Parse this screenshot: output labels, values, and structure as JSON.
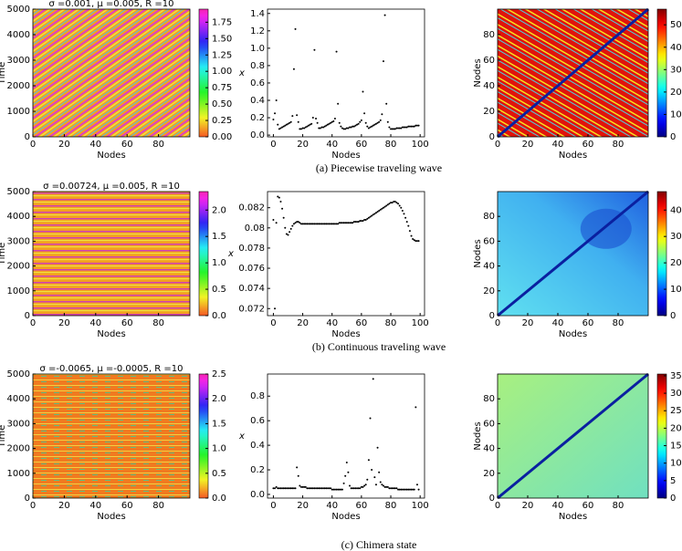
{
  "chart_data": [
    {
      "type": "heatmap",
      "title": "σ =0.001, μ =0.005, R =10",
      "xlabel": "Nodes",
      "ylabel": "Time",
      "xlim": [
        0,
        100
      ],
      "xticks": [
        0,
        20,
        40,
        60,
        80
      ],
      "ylim": [
        0,
        5000
      ],
      "yticks": [
        0,
        1000,
        2000,
        3000,
        4000,
        5000
      ],
      "colormap": "hsv",
      "clim": [
        0,
        1.95
      ],
      "cticks": [
        {
          "value": 0,
          "label": "0.00"
        },
        0.25,
        {
          "value": 0.5,
          "label": "0.50"
        },
        0.75,
        {
          "value": 1,
          "label": "1.00"
        },
        1.25,
        {
          "value": 1.5,
          "label": "1.50"
        },
        1.75
      ]
    },
    {
      "type": "scatter",
      "xlabel": "Nodes",
      "ylabel": "x",
      "color": "#000000",
      "xlim": [
        -4,
        103
      ],
      "xticks": [
        0,
        20,
        40,
        60,
        80,
        100
      ],
      "ylim": [
        -0.02,
        1.45
      ],
      "yticks": [
        {
          "value": 0,
          "label": "0.0"
        },
        0.2,
        0.4,
        0.6,
        0.8,
        {
          "value": 1,
          "label": "1.0"
        },
        1.2,
        1.4
      ],
      "x": [
        0,
        1,
        2,
        3,
        4,
        5,
        6,
        7,
        8,
        9,
        10,
        11,
        12,
        13,
        14,
        15,
        16,
        17,
        18,
        19,
        20,
        21,
        22,
        23,
        24,
        25,
        26,
        27,
        28,
        29,
        30,
        31,
        32,
        33,
        34,
        35,
        36,
        37,
        38,
        39,
        40,
        41,
        42,
        43,
        44,
        45,
        46,
        47,
        48,
        49,
        50,
        51,
        52,
        53,
        54,
        55,
        56,
        57,
        58,
        59,
        60,
        61,
        62,
        63,
        64,
        65,
        66,
        67,
        68,
        69,
        70,
        71,
        72,
        73,
        74,
        75,
        76,
        77,
        78,
        79,
        80,
        81,
        82,
        83,
        84,
        85,
        86,
        87,
        88,
        89,
        90,
        91,
        92,
        93,
        94,
        95,
        96,
        97,
        98,
        99
      ],
      "values": [
        0.18,
        0.25,
        0.4,
        0.12,
        0.07,
        0.08,
        0.09,
        0.1,
        0.11,
        0.12,
        0.13,
        0.14,
        0.15,
        0.22,
        0.76,
        1.22,
        0.23,
        0.15,
        0.07,
        0.07,
        0.08,
        0.08,
        0.09,
        0.1,
        0.11,
        0.12,
        0.13,
        0.2,
        0.98,
        0.19,
        0.14,
        0.08,
        0.08,
        0.09,
        0.09,
        0.1,
        0.11,
        0.12,
        0.13,
        0.14,
        0.15,
        0.16,
        0.19,
        0.96,
        0.36,
        0.14,
        0.1,
        0.08,
        0.07,
        0.07,
        0.08,
        0.08,
        0.09,
        0.09,
        0.1,
        0.1,
        0.11,
        0.12,
        0.13,
        0.15,
        0.17,
        0.5,
        0.25,
        0.14,
        0.1,
        0.08,
        0.09,
        0.1,
        0.11,
        0.12,
        0.13,
        0.14,
        0.15,
        0.17,
        0.24,
        0.85,
        1.38,
        0.36,
        0.15,
        0.09,
        0.07,
        0.07,
        0.07,
        0.07,
        0.08,
        0.08,
        0.08,
        0.08,
        0.09,
        0.09,
        0.09,
        0.09,
        0.1,
        0.1,
        0.1,
        0.1,
        0.1,
        0.11,
        0.11,
        0.11
      ]
    },
    {
      "type": "heatmap",
      "xlabel": "Nodes",
      "ylabel": "Nodes",
      "xlim": [
        0,
        100
      ],
      "xticks": [
        0,
        20,
        40,
        60,
        80
      ],
      "ylim": [
        0,
        100
      ],
      "yticks": [
        0,
        20,
        40,
        60,
        80
      ],
      "colormap": "jet",
      "clim": [
        0,
        57
      ],
      "cticks": [
        0,
        10,
        20,
        30,
        40,
        50
      ]
    },
    {
      "type": "heatmap",
      "title": "σ =0.00724, μ =0.005, R =10",
      "xlabel": "Nodes",
      "ylabel": "Time",
      "xlim": [
        0,
        100
      ],
      "xticks": [
        0,
        20,
        40,
        60,
        80
      ],
      "ylim": [
        0,
        5000
      ],
      "yticks": [
        0,
        1000,
        2000,
        3000,
        4000,
        5000
      ],
      "colormap": "hsv",
      "clim": [
        0,
        2.35
      ],
      "cticks": [
        {
          "value": 0,
          "label": "0.0"
        },
        0.5,
        {
          "value": 1,
          "label": "1.0"
        },
        1.5,
        {
          "value": 2,
          "label": "2.0"
        }
      ]
    },
    {
      "type": "scatter",
      "xlabel": "Nodes",
      "ylabel": "x",
      "color": "#000000",
      "xlim": [
        -4,
        103
      ],
      "xticks": [
        0,
        20,
        40,
        60,
        80,
        100
      ],
      "ylim": [
        0.0713,
        0.0836
      ],
      "yticks": [
        0.072,
        0.074,
        0.076,
        0.078,
        0.08,
        0.082
      ],
      "x": [
        0,
        1,
        2,
        3,
        4,
        5,
        6,
        7,
        8,
        9,
        10,
        11,
        12,
        13,
        14,
        15,
        16,
        17,
        18,
        19,
        20,
        21,
        22,
        23,
        24,
        25,
        26,
        27,
        28,
        29,
        30,
        31,
        32,
        33,
        34,
        35,
        36,
        37,
        38,
        39,
        40,
        41,
        42,
        43,
        44,
        45,
        46,
        47,
        48,
        49,
        50,
        51,
        52,
        53,
        54,
        55,
        56,
        57,
        58,
        59,
        60,
        61,
        62,
        63,
        64,
        65,
        66,
        67,
        68,
        69,
        70,
        71,
        72,
        73,
        74,
        75,
        76,
        77,
        78,
        79,
        80,
        81,
        82,
        83,
        84,
        85,
        86,
        87,
        88,
        89,
        90,
        91,
        92,
        93,
        94,
        95,
        96,
        97,
        98,
        99
      ],
      "values": [
        0.0808,
        0.072,
        0.0805,
        0.0831,
        0.083,
        0.0826,
        0.0819,
        0.081,
        0.08,
        0.0794,
        0.0793,
        0.0796,
        0.0799,
        0.0802,
        0.0804,
        0.0805,
        0.0806,
        0.0806,
        0.0805,
        0.0804,
        0.0804,
        0.0804,
        0.0804,
        0.0804,
        0.0804,
        0.0804,
        0.0804,
        0.0804,
        0.0804,
        0.0804,
        0.0804,
        0.0804,
        0.0804,
        0.0804,
        0.0804,
        0.0804,
        0.0804,
        0.0804,
        0.0804,
        0.0804,
        0.0804,
        0.0804,
        0.0804,
        0.0804,
        0.0804,
        0.0805,
        0.0805,
        0.0805,
        0.0805,
        0.0805,
        0.0805,
        0.0805,
        0.0805,
        0.0805,
        0.0805,
        0.0806,
        0.0806,
        0.0806,
        0.0806,
        0.0807,
        0.0807,
        0.0807,
        0.0808,
        0.0808,
        0.0809,
        0.081,
        0.0811,
        0.0812,
        0.0813,
        0.0814,
        0.0815,
        0.0816,
        0.0817,
        0.0818,
        0.0819,
        0.082,
        0.0821,
        0.0822,
        0.0823,
        0.0824,
        0.0825,
        0.0825,
        0.0826,
        0.0826,
        0.0825,
        0.0824,
        0.0822,
        0.082,
        0.0817,
        0.0814,
        0.081,
        0.0806,
        0.0802,
        0.0797,
        0.0792,
        0.0789,
        0.0788,
        0.0787,
        0.0787,
        0.0787
      ]
    },
    {
      "type": "heatmap",
      "xlabel": "Nodes",
      "ylabel": "Nodes",
      "xlim": [
        0,
        100
      ],
      "xticks": [
        0,
        20,
        40,
        60,
        80
      ],
      "ylim": [
        0,
        100
      ],
      "yticks": [
        0,
        20,
        40,
        60,
        80
      ],
      "colormap": "jet",
      "clim": [
        0,
        47
      ],
      "cticks": [
        0,
        10,
        20,
        30,
        40
      ]
    },
    {
      "type": "heatmap",
      "title": "σ =-0.0065, μ =-0.0005, R =10",
      "xlabel": "Nodes",
      "ylabel": "Time",
      "xlim": [
        0,
        100
      ],
      "xticks": [
        0,
        20,
        40,
        60,
        80
      ],
      "ylim": [
        0,
        5000
      ],
      "yticks": [
        0,
        1000,
        2000,
        3000,
        4000,
        5000
      ],
      "colormap": "hsv",
      "clim": [
        0,
        2.5
      ],
      "cticks": [
        {
          "value": 0,
          "label": "0.0"
        },
        0.5,
        {
          "value": 1,
          "label": "1.0"
        },
        1.5,
        {
          "value": 2,
          "label": "2.0"
        },
        2.5
      ]
    },
    {
      "type": "scatter",
      "xlabel": "Nodes",
      "ylabel": "x",
      "color": "#000000",
      "xlim": [
        -4,
        103
      ],
      "xticks": [
        0,
        20,
        40,
        60,
        80,
        100
      ],
      "ylim": [
        -0.03,
        0.98
      ],
      "yticks": [
        {
          "value": 0,
          "label": "0.0"
        },
        0.2,
        0.4,
        0.6,
        0.8
      ],
      "x": [
        0,
        1,
        2,
        3,
        4,
        5,
        6,
        7,
        8,
        9,
        10,
        11,
        12,
        13,
        14,
        15,
        16,
        17,
        18,
        19,
        20,
        21,
        22,
        23,
        24,
        25,
        26,
        27,
        28,
        29,
        30,
        31,
        32,
        33,
        34,
        35,
        36,
        37,
        38,
        39,
        40,
        41,
        42,
        43,
        44,
        45,
        46,
        47,
        48,
        49,
        50,
        51,
        52,
        53,
        54,
        55,
        56,
        57,
        58,
        59,
        60,
        61,
        62,
        63,
        64,
        65,
        66,
        67,
        68,
        69,
        70,
        71,
        72,
        73,
        74,
        75,
        76,
        77,
        78,
        79,
        80,
        81,
        82,
        83,
        84,
        85,
        86,
        87,
        88,
        89,
        90,
        91,
        92,
        93,
        94,
        95,
        96,
        97,
        98,
        99
      ],
      "values": [
        0.05,
        0.05,
        0.06,
        0.05,
        0.05,
        0.05,
        0.05,
        0.05,
        0.05,
        0.05,
        0.05,
        0.05,
        0.05,
        0.05,
        0.05,
        0.05,
        0.22,
        0.15,
        0.07,
        0.06,
        0.06,
        0.06,
        0.06,
        0.05,
        0.05,
        0.05,
        0.05,
        0.05,
        0.05,
        0.05,
        0.05,
        0.05,
        0.05,
        0.05,
        0.05,
        0.05,
        0.05,
        0.05,
        0.05,
        0.05,
        0.04,
        0.04,
        0.04,
        0.04,
        0.04,
        0.04,
        0.04,
        0.04,
        0.09,
        0.15,
        0.26,
        0.18,
        0.07,
        0.05,
        0.05,
        0.05,
        0.05,
        0.05,
        0.05,
        0.05,
        0.06,
        0.06,
        0.07,
        0.08,
        0.12,
        0.28,
        0.62,
        0.2,
        0.94,
        0.14,
        0.08,
        0.38,
        0.18,
        0.1,
        0.08,
        0.07,
        0.06,
        0.06,
        0.06,
        0.05,
        0.05,
        0.05,
        0.05,
        0.05,
        0.05,
        0.04,
        0.04,
        0.04,
        0.04,
        0.04,
        0.04,
        0.04,
        0.04,
        0.04,
        0.04,
        0.04,
        0.04,
        0.71,
        0.08,
        0.04
      ]
    },
    {
      "type": "heatmap",
      "xlabel": "Nodes",
      "ylabel": "Nodes",
      "xlim": [
        0,
        100
      ],
      "xticks": [
        0,
        20,
        40,
        60,
        80
      ],
      "ylim": [
        0,
        100
      ],
      "yticks": [
        0,
        20,
        40,
        60,
        80
      ],
      "colormap": "jet",
      "clim": [
        0,
        35.5
      ],
      "cticks": [
        0,
        5,
        10,
        15,
        20,
        25,
        30,
        35
      ]
    }
  ],
  "captions": [
    "(a) Piecewise traveling wave",
    "(b) Continuous traveling wave",
    "(c) Chimera state"
  ]
}
